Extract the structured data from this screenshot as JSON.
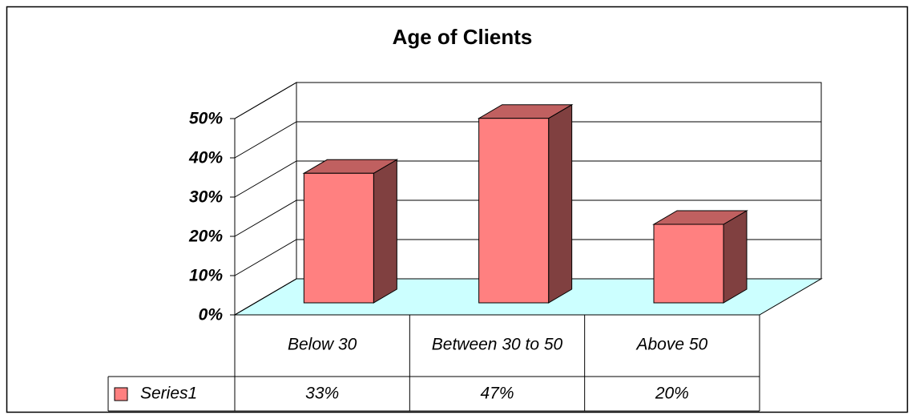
{
  "chart_data": {
    "type": "bar",
    "title": "Age of Clients",
    "categories": [
      "Below 30",
      "Between 30 to 50",
      "Above 50"
    ],
    "series": [
      {
        "name": "Series1",
        "color": "#ff8080",
        "values": [
          33,
          47,
          20
        ],
        "value_labels": [
          "33%",
          "47%",
          "20%"
        ]
      }
    ],
    "ylim": [
      0,
      50
    ],
    "yticks": [
      {
        "value": 0,
        "label": "0%"
      },
      {
        "value": 10,
        "label": "10%"
      },
      {
        "value": 20,
        "label": "20%"
      },
      {
        "value": 30,
        "label": "30%"
      },
      {
        "value": 40,
        "label": "40%"
      },
      {
        "value": 50,
        "label": "50%"
      }
    ],
    "grid": true
  }
}
